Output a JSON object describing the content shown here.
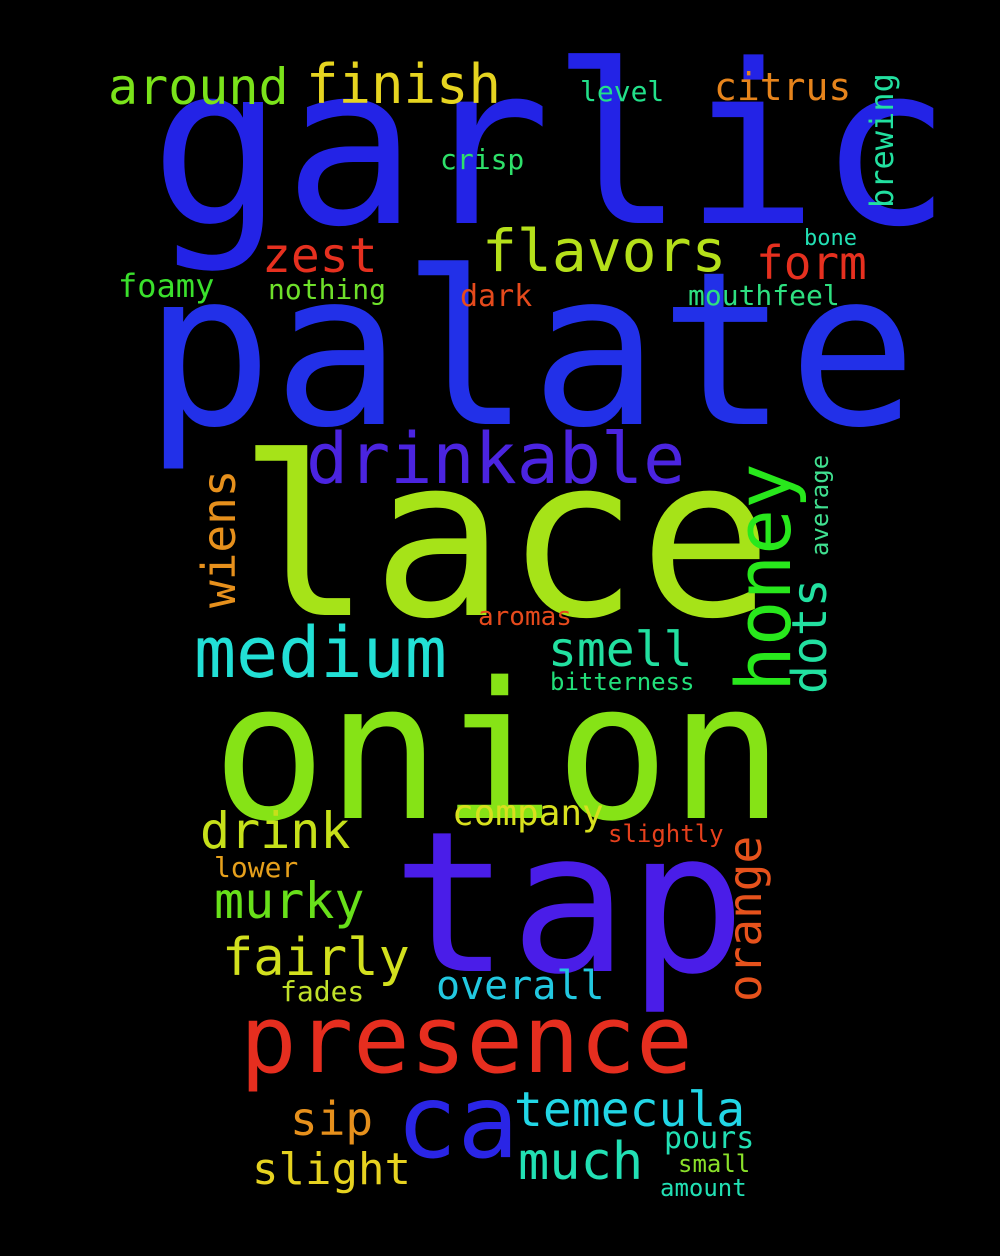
{
  "words": [
    {
      "text": "garlic",
      "color": "#2323e6"
    },
    {
      "text": "palate",
      "color": "#2230e8"
    },
    {
      "text": "lace",
      "color": "#a6e318"
    },
    {
      "text": "onion",
      "color": "#86e316"
    },
    {
      "text": "tap",
      "color": "#4a1de8"
    },
    {
      "text": "presence",
      "color": "#e62e1f"
    },
    {
      "text": "ca",
      "color": "#2a25e6"
    },
    {
      "text": "drinkable",
      "color": "#4b24e0"
    },
    {
      "text": "medium",
      "color": "#22e0d6"
    },
    {
      "text": "honey",
      "color": "#28e81c"
    },
    {
      "text": "flavors",
      "color": "#b5e01a"
    },
    {
      "text": "finish",
      "color": "#e6d420"
    },
    {
      "text": "around",
      "color": "#7ae31a"
    },
    {
      "text": "citrus",
      "color": "#e6841c"
    },
    {
      "text": "zest",
      "color": "#e6301f"
    },
    {
      "text": "form",
      "color": "#e6301f"
    },
    {
      "text": "wiens",
      "color": "#e6901c"
    },
    {
      "text": "smell",
      "color": "#22e0a0"
    },
    {
      "text": "dots",
      "color": "#22e0a0"
    },
    {
      "text": "drink",
      "color": "#c6e01a"
    },
    {
      "text": "murky",
      "color": "#68e01a"
    },
    {
      "text": "fairly",
      "color": "#d2e01e"
    },
    {
      "text": "orange",
      "color": "#e6521c"
    },
    {
      "text": "overall",
      "color": "#22c8e0"
    },
    {
      "text": "temecula",
      "color": "#22d6e6"
    },
    {
      "text": "much",
      "color": "#22e0b4"
    },
    {
      "text": "sip",
      "color": "#e6901c"
    },
    {
      "text": "slight",
      "color": "#e6d220"
    },
    {
      "text": "company",
      "color": "#d8e01e"
    },
    {
      "text": "brewing",
      "color": "#22e0a0"
    },
    {
      "text": "level",
      "color": "#22e08a"
    },
    {
      "text": "crisp",
      "color": "#2ee06a"
    },
    {
      "text": "foamy",
      "color": "#3ae02c"
    },
    {
      "text": "nothing",
      "color": "#6ee02a"
    },
    {
      "text": "dark",
      "color": "#e64a1c"
    },
    {
      "text": "mouthfeel",
      "color": "#2ee080"
    },
    {
      "text": "bone",
      "color": "#22e0b4"
    },
    {
      "text": "average",
      "color": "#40e090"
    },
    {
      "text": "aromas",
      "color": "#e64a1c"
    },
    {
      "text": "bitterness",
      "color": "#22e07a"
    },
    {
      "text": "slightly",
      "color": "#e6401c"
    },
    {
      "text": "lower",
      "color": "#e6a01c"
    },
    {
      "text": "fades",
      "color": "#c0e02a"
    },
    {
      "text": "pours",
      "color": "#22e0b4"
    },
    {
      "text": "small",
      "color": "#8ae02a"
    },
    {
      "text": "amount",
      "color": "#22e0b4"
    }
  ]
}
